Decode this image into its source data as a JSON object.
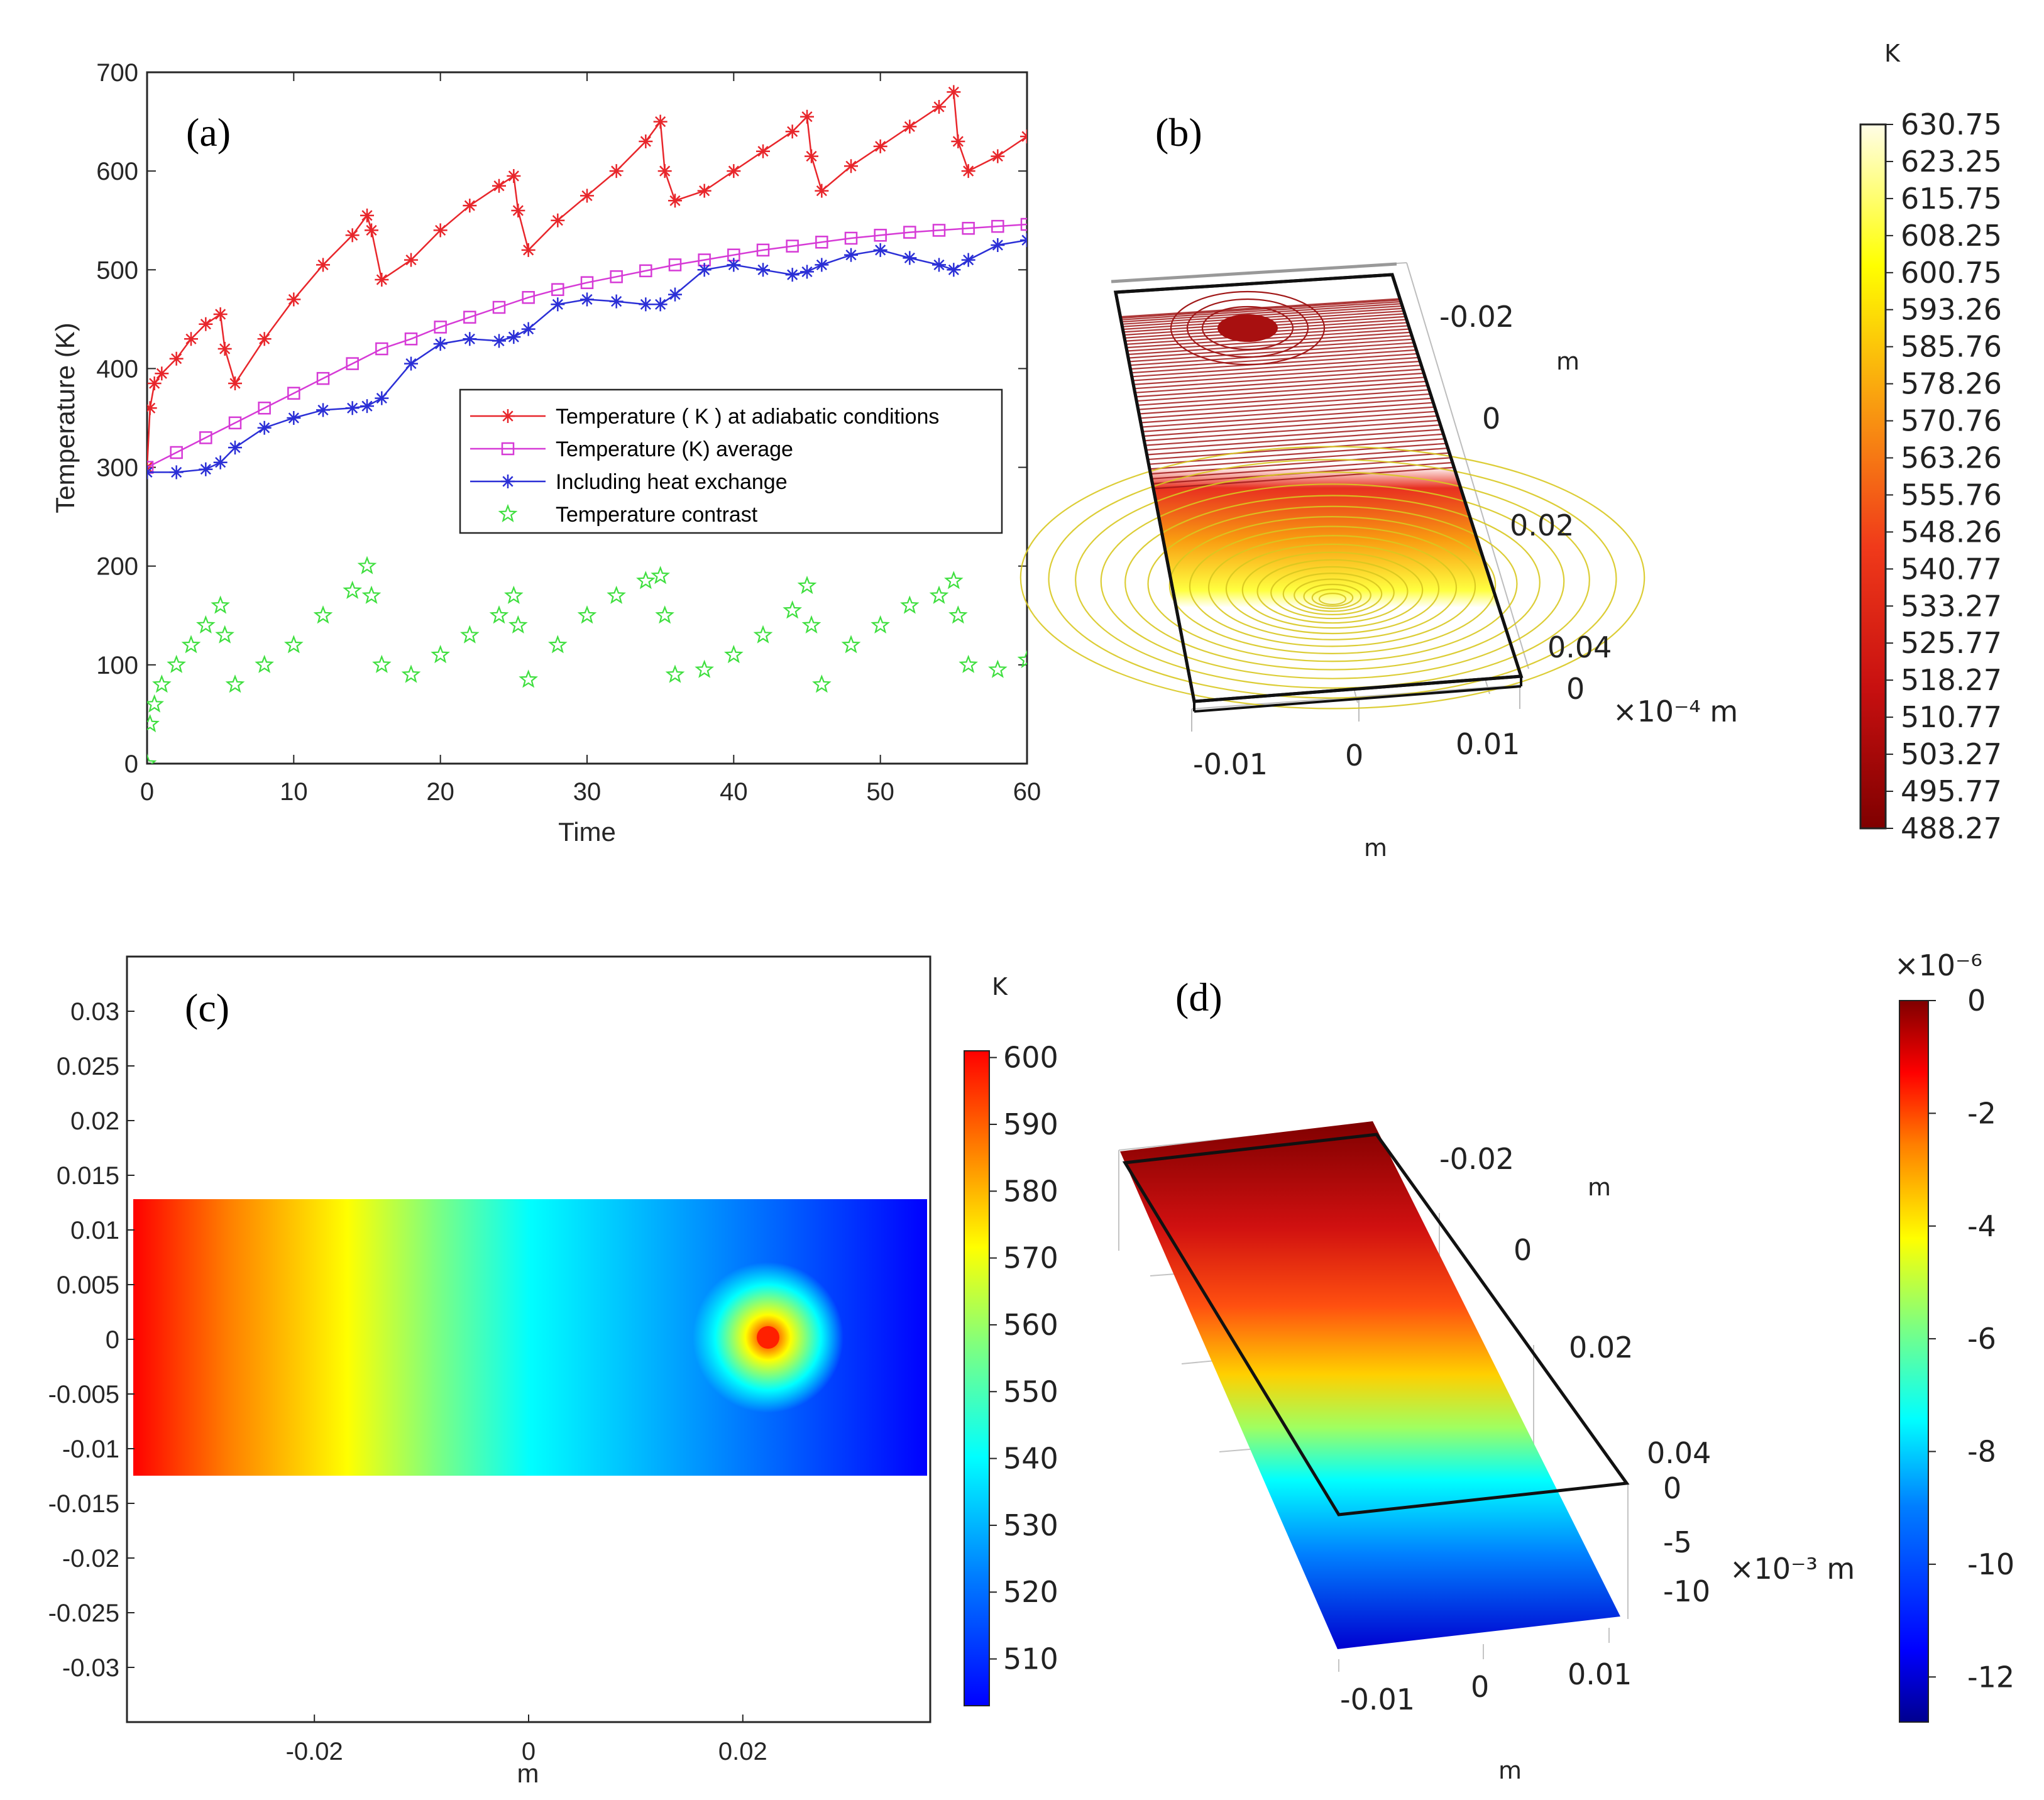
{
  "chart_data": [
    {
      "panel": "(a)",
      "type": "line",
      "xlabel": "Time",
      "ylabel": "Temperature (K)",
      "xlim": [
        0,
        60
      ],
      "ylim": [
        0,
        700
      ],
      "xticks": [
        "0",
        "10",
        "20",
        "30",
        "40",
        "50",
        "60"
      ],
      "yticks": [
        "0",
        "100",
        "200",
        "300",
        "400",
        "500",
        "600",
        "700"
      ],
      "legend_position": "center-right",
      "series": [
        {
          "name": "Temperature ( K ) at adiabatic conditions",
          "color": "#e8262b",
          "marker": "asterisk",
          "x": [
            0,
            0.2,
            0.5,
            1,
            2,
            3,
            4,
            5,
            5.3,
            6,
            8,
            10,
            12,
            14,
            15,
            15.3,
            16,
            18,
            20,
            22,
            24,
            25,
            25.3,
            26,
            28,
            30,
            32,
            34,
            35,
            35.3,
            36,
            38,
            40,
            42,
            44,
            45,
            45.3,
            46,
            48,
            50,
            52,
            54,
            55,
            55.3,
            56,
            58,
            60
          ],
          "y": [
            300,
            360,
            385,
            395,
            410,
            430,
            445,
            455,
            420,
            385,
            430,
            470,
            505,
            535,
            555,
            540,
            490,
            510,
            540,
            565,
            585,
            595,
            560,
            520,
            550,
            575,
            600,
            630,
            650,
            600,
            570,
            580,
            600,
            620,
            640,
            655,
            615,
            580,
            605,
            625,
            645,
            665,
            680,
            630,
            600,
            615,
            635
          ]
        },
        {
          "name": "Temperature (K) average",
          "color": "#d63ad6",
          "marker": "square",
          "x": [
            0,
            2,
            4,
            6,
            8,
            10,
            12,
            14,
            16,
            18,
            20,
            22,
            24,
            26,
            28,
            30,
            32,
            34,
            36,
            38,
            40,
            42,
            44,
            46,
            48,
            50,
            52,
            54,
            56,
            58,
            60
          ],
          "y": [
            300,
            315,
            330,
            345,
            360,
            375,
            390,
            405,
            420,
            430,
            442,
            452,
            462,
            472,
            480,
            487,
            493,
            499,
            505,
            510,
            515,
            520,
            524,
            528,
            532,
            535,
            538,
            540,
            542,
            544,
            546
          ]
        },
        {
          "name": "Including heat exchange",
          "color": "#2b2fd6",
          "marker": "asterisk",
          "x": [
            0,
            2,
            4,
            5,
            6,
            8,
            10,
            12,
            14,
            15,
            16,
            18,
            20,
            22,
            24,
            25,
            26,
            28,
            30,
            32,
            34,
            35,
            36,
            38,
            40,
            42,
            44,
            45,
            46,
            48,
            50,
            52,
            54,
            55,
            56,
            58,
            60
          ],
          "y": [
            295,
            295,
            298,
            305,
            320,
            340,
            350,
            358,
            360,
            362,
            370,
            405,
            425,
            430,
            428,
            432,
            440,
            465,
            470,
            468,
            465,
            465,
            475,
            500,
            505,
            500,
            495,
            498,
            505,
            515,
            520,
            512,
            505,
            500,
            510,
            525,
            530
          ]
        },
        {
          "name": "Temperature contrast",
          "color": "#3fdf3f",
          "marker": "pentagram",
          "x": [
            0,
            0.2,
            0.5,
            1,
            2,
            3,
            4,
            5,
            5.3,
            6,
            8,
            10,
            12,
            14,
            15,
            15.3,
            16,
            18,
            20,
            22,
            24,
            25,
            25.3,
            26,
            28,
            30,
            32,
            34,
            35,
            35.3,
            36,
            38,
            40,
            42,
            44,
            45,
            45.3,
            46,
            48,
            50,
            52,
            54,
            55,
            55.3,
            56,
            58,
            60
          ],
          "y": [
            0,
            40,
            60,
            80,
            100,
            120,
            140,
            160,
            130,
            80,
            100,
            120,
            150,
            175,
            200,
            170,
            100,
            90,
            110,
            130,
            150,
            170,
            140,
            85,
            120,
            150,
            170,
            185,
            190,
            150,
            90,
            95,
            110,
            130,
            155,
            180,
            140,
            80,
            120,
            140,
            160,
            170,
            185,
            150,
            100,
            95,
            105
          ]
        }
      ]
    },
    {
      "panel": "(b)",
      "type": "heatmap",
      "view": "3D contour plot",
      "colorbar_unit": "K",
      "colorbar_ticks": [
        "630.75",
        "623.25",
        "615.75",
        "608.25",
        "600.75",
        "593.26",
        "585.76",
        "578.26",
        "570.76",
        "563.26",
        "555.76",
        "548.26",
        "540.77",
        "533.27",
        "525.77",
        "518.27",
        "510.77",
        "503.27",
        "495.77",
        "488.27"
      ],
      "colorbar_range": [
        488.27,
        630.75
      ],
      "y_axis_ticks": [
        "-0.02",
        "0",
        "0.02",
        "0.04"
      ],
      "y_axis_unit": "m",
      "x_axis_ticks": [
        "-0.01",
        "0",
        "0.01"
      ],
      "x_axis_unit": "m",
      "z_axis_ticks": [
        "0"
      ],
      "z_axis_unit": "×10⁻⁴ m"
    },
    {
      "panel": "(c)",
      "type": "heatmap",
      "view": "2D surface plot",
      "colorbar_unit": "K",
      "colorbar_ticks": [
        "600",
        "590",
        "580",
        "570",
        "560",
        "550",
        "540",
        "530",
        "520",
        "510"
      ],
      "colorbar_range": [
        503,
        601
      ],
      "xticks": [
        "-0.02",
        "0",
        "0.02"
      ],
      "xlabel": "m",
      "yticks": [
        "0.03",
        "0.025",
        "0.02",
        "0.015",
        "0.01",
        "0.005",
        "0",
        "-0.005",
        "-0.01",
        "-0.015",
        "-0.02",
        "-0.025",
        "-0.03"
      ],
      "xlim": [
        -0.0375,
        0.0375
      ],
      "ylim": [
        -0.035,
        0.035
      ],
      "domain": {
        "x": [
          -0.0375,
          0.0375
        ],
        "y": [
          -0.0125,
          0.0125
        ]
      },
      "hot_spot": {
        "x": 0.0225,
        "y": 0
      }
    },
    {
      "panel": "(d)",
      "type": "heatmap",
      "view": "3D surface plot",
      "colorbar_exponent": "×10⁻⁶",
      "colorbar_ticks": [
        "0",
        "-2",
        "-4",
        "-6",
        "-8",
        "-10",
        "-12"
      ],
      "colorbar_range": [
        -12.8,
        0
      ],
      "y_axis_ticks": [
        "-0.02",
        "0",
        "0.02",
        "0.04"
      ],
      "y_axis_unit": "m",
      "x_axis_ticks": [
        "-0.01",
        "0",
        "0.01"
      ],
      "x_axis_unit": "m",
      "z_axis_ticks": [
        "0",
        "-5",
        "-10"
      ],
      "z_axis_unit": "×10⁻³ m"
    }
  ],
  "colors": {
    "jet": [
      "#00008f",
      "#0000ff",
      "#007fff",
      "#00ffff",
      "#7fff7f",
      "#ffff00",
      "#ff7f00",
      "#ff0000",
      "#7f0000"
    ],
    "heat": [
      "#7f0000",
      "#c81010",
      "#f03a1a",
      "#f99b10",
      "#ffff00",
      "#fffde7"
    ]
  }
}
